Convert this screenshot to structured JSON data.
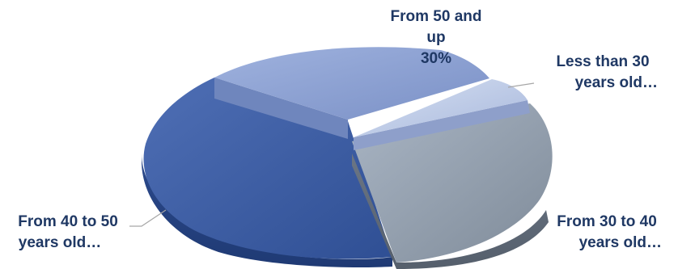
{
  "chart_data": {
    "type": "pie",
    "style": "3d-exploded",
    "slices": [
      {
        "key": "s50",
        "label_lines": [
          "From 50 and",
          "up",
          "30%"
        ],
        "value": 30,
        "color": "#8ea3d4"
      },
      {
        "key": "s30",
        "label_lines": [
          "Less than 30",
          "years old…"
        ],
        "value": 5,
        "color": "#b9c7e6"
      },
      {
        "key": "s3040",
        "label_lines": [
          "From 30 to 40",
          "years old…"
        ],
        "value": 21,
        "color": "#8f9aa8"
      },
      {
        "key": "s4050",
        "label_lines": [
          "From 40 to 50",
          "years old…"
        ],
        "value": 44,
        "color": "#4a6ab0"
      }
    ]
  }
}
